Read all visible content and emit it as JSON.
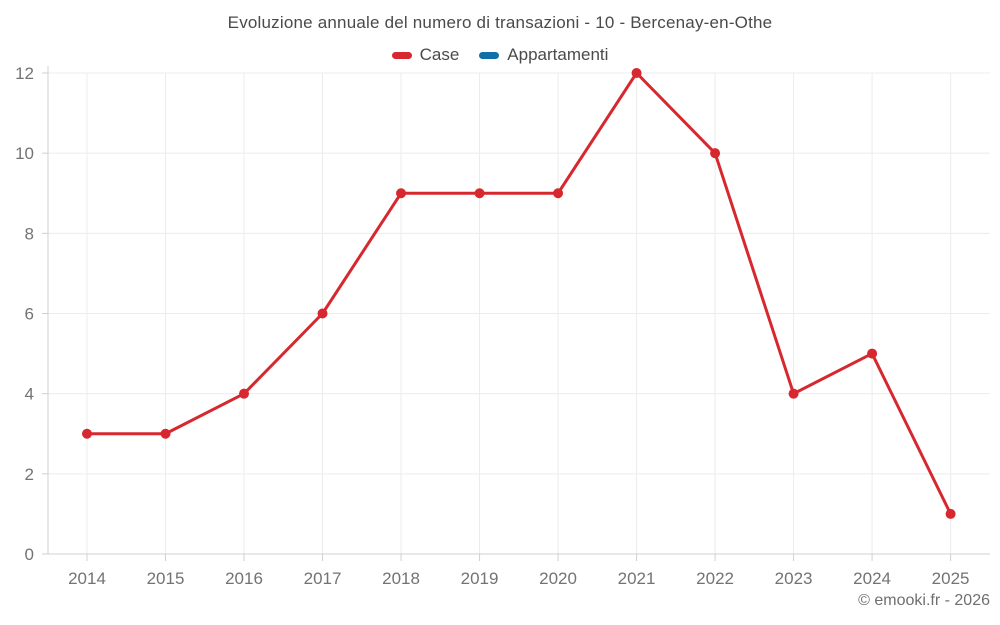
{
  "footer": {
    "copyright": "© emooki.fr - 2026"
  },
  "chart_data": {
    "type": "line",
    "title": "Evoluzione annuale del numero di transazioni - 10 - Bercenay-en-Othe",
    "categories": [
      "2014",
      "2015",
      "2016",
      "2017",
      "2018",
      "2019",
      "2020",
      "2021",
      "2022",
      "2023",
      "2024",
      "2025"
    ],
    "series": [
      {
        "name": "Case",
        "color": "#d7282f",
        "values": [
          3,
          3,
          4,
          6,
          9,
          9,
          9,
          12,
          10,
          4,
          5,
          1
        ]
      },
      {
        "name": "Appartamenti",
        "color": "#106fa6",
        "values": []
      }
    ],
    "xlabel": "",
    "ylabel": "",
    "ylim": [
      0,
      12
    ],
    "yticks": [
      0,
      2,
      4,
      6,
      8,
      10,
      12
    ],
    "grid": true,
    "legend_position": "top",
    "marker": "circle",
    "marker_radius": 5,
    "line_width": 3
  }
}
